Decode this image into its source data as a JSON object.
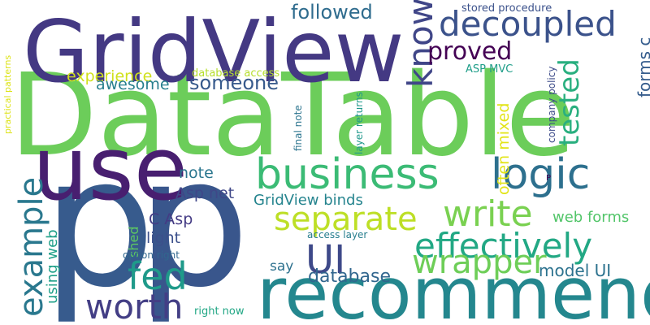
{
  "background": "#ffffff",
  "words": [
    {
      "text": "DataTable",
      "color": "#6ccd5a"
    },
    {
      "text": "GridView",
      "color": "#443983"
    },
    {
      "text": "p",
      "color": "#375b8d"
    },
    {
      "text": "p",
      "color": "#39568c"
    },
    {
      "text": "use",
      "color": "#481f70"
    },
    {
      "text": "recommend",
      "color": "#24878e"
    },
    {
      "text": "business",
      "color": "#3bbb75"
    },
    {
      "text": "logic",
      "color": "#2d708e"
    },
    {
      "text": "decoupled",
      "color": "#3b528b"
    },
    {
      "text": "separate",
      "color": "#bddf26"
    },
    {
      "text": "write",
      "color": "#7ad151"
    },
    {
      "text": "effectively",
      "color": "#22a884"
    },
    {
      "text": "wrapper",
      "color": "#6ece58"
    },
    {
      "text": "UI",
      "color": "#3e4989"
    },
    {
      "text": "fed",
      "color": "#1f9a8a"
    },
    {
      "text": "worth",
      "color": "#433e85"
    },
    {
      "text": "example",
      "color": "#2a788e"
    },
    {
      "text": "know",
      "color": "#404688"
    },
    {
      "text": "proved",
      "color": "#440154"
    },
    {
      "text": "tested",
      "color": "#29af7f"
    },
    {
      "text": "followed",
      "color": "#2f6c8e"
    },
    {
      "text": "database",
      "color": "#31668e"
    },
    {
      "text": "someone",
      "color": "#375a8c"
    },
    {
      "text": "experience",
      "color": "#d0e11c"
    },
    {
      "text": "awesome",
      "color": "#277f8e"
    },
    {
      "text": "model UI",
      "color": "#2c728e"
    },
    {
      "text": "web forms",
      "color": "#52c569"
    },
    {
      "text": "forms c",
      "color": "#365d8d"
    },
    {
      "text": "often mixed",
      "color": "#e2e418"
    },
    {
      "text": "Asp net",
      "color": "#3f4788"
    },
    {
      "text": "note",
      "color": "#2a768e"
    },
    {
      "text": "C Asp",
      "color": "#443b84"
    },
    {
      "text": "light",
      "color": "#3c508b"
    },
    {
      "text": "GridView binds",
      "color": "#25848e"
    },
    {
      "text": "using web",
      "color": "#1fa088"
    },
    {
      "text": "shed",
      "color": "#5ec962"
    },
    {
      "text": "say",
      "color": "#2d718e"
    },
    {
      "text": "stored procedure",
      "color": "#3b518b"
    },
    {
      "text": "database access",
      "color": "#b5de2b"
    },
    {
      "text": "ASP MVC",
      "color": "#1f9e89"
    },
    {
      "text": "company policy",
      "color": "#3e4c8a"
    },
    {
      "text": "final note",
      "color": "#2b748e"
    },
    {
      "text": "layer returns",
      "color": "#1f988b"
    },
    {
      "text": "practical patterns",
      "color": "#dde318"
    },
    {
      "text": "access layer",
      "color": "#277e8e"
    },
    {
      "text": "option right",
      "color": "#31678e"
    },
    {
      "text": "right now",
      "color": "#22a785"
    },
    {
      "text": "P",
      "color": "#440154"
    }
  ]
}
